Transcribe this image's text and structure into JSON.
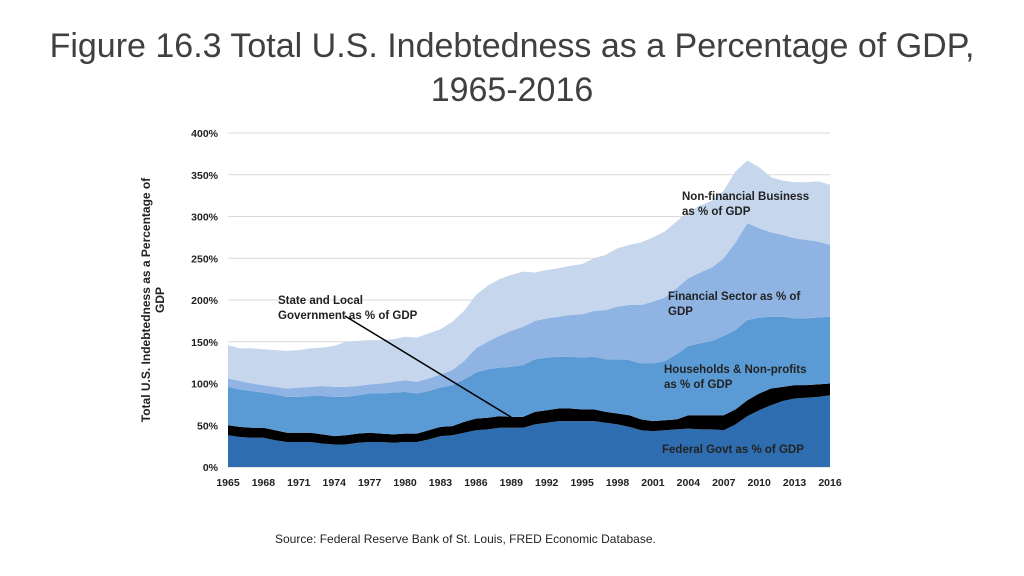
{
  "slide": {
    "title_line1": "Figure 16.3 Total U.S. Indebtedness as a Percentage of GDP,",
    "title_line2": "1965-2016",
    "source": "Source: Federal Reserve Bank of St. Louis, FRED Economic Database."
  },
  "chart_data": {
    "type": "area",
    "stacked": true,
    "title": "Figure 16.3 Total U.S. Indebtedness as a Percentage of GDP, 1965-2016",
    "ylabel": "Total U.S. Indebtedness as a Percentage of GDP",
    "xlabel": "",
    "ylim": [
      0,
      400
    ],
    "xlim": [
      1965,
      2016
    ],
    "grid": true,
    "x_ticks": [
      "1965",
      "1968",
      "1971",
      "1974",
      "1977",
      "1980",
      "1983",
      "1986",
      "1989",
      "1992",
      "1995",
      "1998",
      "2001",
      "2004",
      "2007",
      "2010",
      "2013",
      "2016"
    ],
    "y_ticks": [
      "0%",
      "50%",
      "100%",
      "150%",
      "200%",
      "250%",
      "300%",
      "350%",
      "400%"
    ],
    "x": [
      1965,
      1966,
      1967,
      1968,
      1969,
      1970,
      1971,
      1972,
      1973,
      1974,
      1975,
      1976,
      1977,
      1978,
      1979,
      1980,
      1981,
      1982,
      1983,
      1984,
      1985,
      1986,
      1987,
      1988,
      1989,
      1990,
      1991,
      1992,
      1993,
      1994,
      1995,
      1996,
      1997,
      1998,
      1999,
      2000,
      2001,
      2002,
      2003,
      2004,
      2005,
      2006,
      2007,
      2008,
      2009,
      2010,
      2011,
      2012,
      2013,
      2014,
      2015,
      2016
    ],
    "series": [
      {
        "name": "Federal Govt as % of GDP",
        "color": "#2e6db0",
        "values": [
          38,
          36,
          35,
          35,
          32,
          30,
          30,
          30,
          28,
          27,
          27,
          29,
          30,
          30,
          29,
          30,
          30,
          33,
          37,
          38,
          41,
          44,
          45,
          47,
          47,
          47,
          51,
          53,
          55,
          55,
          55,
          55,
          53,
          51,
          48,
          44,
          43,
          44,
          45,
          46,
          45,
          45,
          44,
          51,
          61,
          68,
          74,
          79,
          82,
          83,
          84,
          86
        ]
      },
      {
        "name": "State and Local Government as % of GDP",
        "color": "#000000",
        "values": [
          12,
          12,
          12,
          12,
          12,
          11,
          11,
          11,
          11,
          10,
          11,
          11,
          11,
          10,
          10,
          10,
          10,
          11,
          11,
          11,
          13,
          14,
          14,
          14,
          13,
          13,
          15,
          15,
          15,
          15,
          14,
          14,
          13,
          13,
          14,
          13,
          12,
          12,
          12,
          16,
          17,
          17,
          18,
          18,
          19,
          20,
          20,
          17,
          16,
          15,
          15,
          14
        ]
      },
      {
        "name": "Households & Non-profits as % of GDP",
        "color": "#5b9bd5",
        "values": [
          46,
          45,
          44,
          42,
          43,
          43,
          43,
          44,
          46,
          47,
          46,
          46,
          47,
          48,
          50,
          50,
          48,
          47,
          47,
          49,
          51,
          55,
          58,
          58,
          60,
          62,
          63,
          63,
          62,
          62,
          62,
          63,
          63,
          65,
          66,
          67,
          69,
          71,
          78,
          83,
          86,
          89,
          95,
          95,
          96,
          91,
          86,
          84,
          80,
          80,
          80,
          80
        ]
      },
      {
        "name": "Financial Sector as % of GDP",
        "color": "#8fb4e3",
        "values": [
          10,
          10,
          9,
          9,
          9,
          10,
          11,
          11,
          12,
          12,
          12,
          11,
          11,
          12,
          13,
          14,
          14,
          15,
          16,
          18,
          22,
          29,
          33,
          38,
          43,
          46,
          46,
          47,
          48,
          50,
          52,
          55,
          59,
          63,
          66,
          70,
          74,
          76,
          79,
          81,
          85,
          88,
          93,
          105,
          116,
          107,
          101,
          98,
          96,
          94,
          91,
          86
        ]
      },
      {
        "name": "Non-financial Business as % of GDP",
        "color": "#c5d6ed",
        "values": [
          40,
          39,
          42,
          43,
          44,
          45,
          45,
          46,
          46,
          49,
          54,
          54,
          53,
          52,
          51,
          52,
          53,
          54,
          54,
          58,
          60,
          64,
          67,
          68,
          67,
          66,
          58,
          58,
          58,
          59,
          60,
          63,
          66,
          70,
          72,
          75,
          77,
          79,
          80,
          80,
          80,
          80,
          81,
          85,
          75,
          73,
          66,
          65,
          67,
          69,
          72,
          72
        ]
      }
    ],
    "annotations": [
      {
        "text": "Non-financial Business as % of GDP"
      },
      {
        "text": "Financial Sector as % of GDP"
      },
      {
        "text": "Households & Non-profits as % of GDP"
      },
      {
        "text": "State and Local Government as % of GDP",
        "points_to_year": 1989
      },
      {
        "text": "Federal Govt as % of GDP"
      }
    ]
  }
}
